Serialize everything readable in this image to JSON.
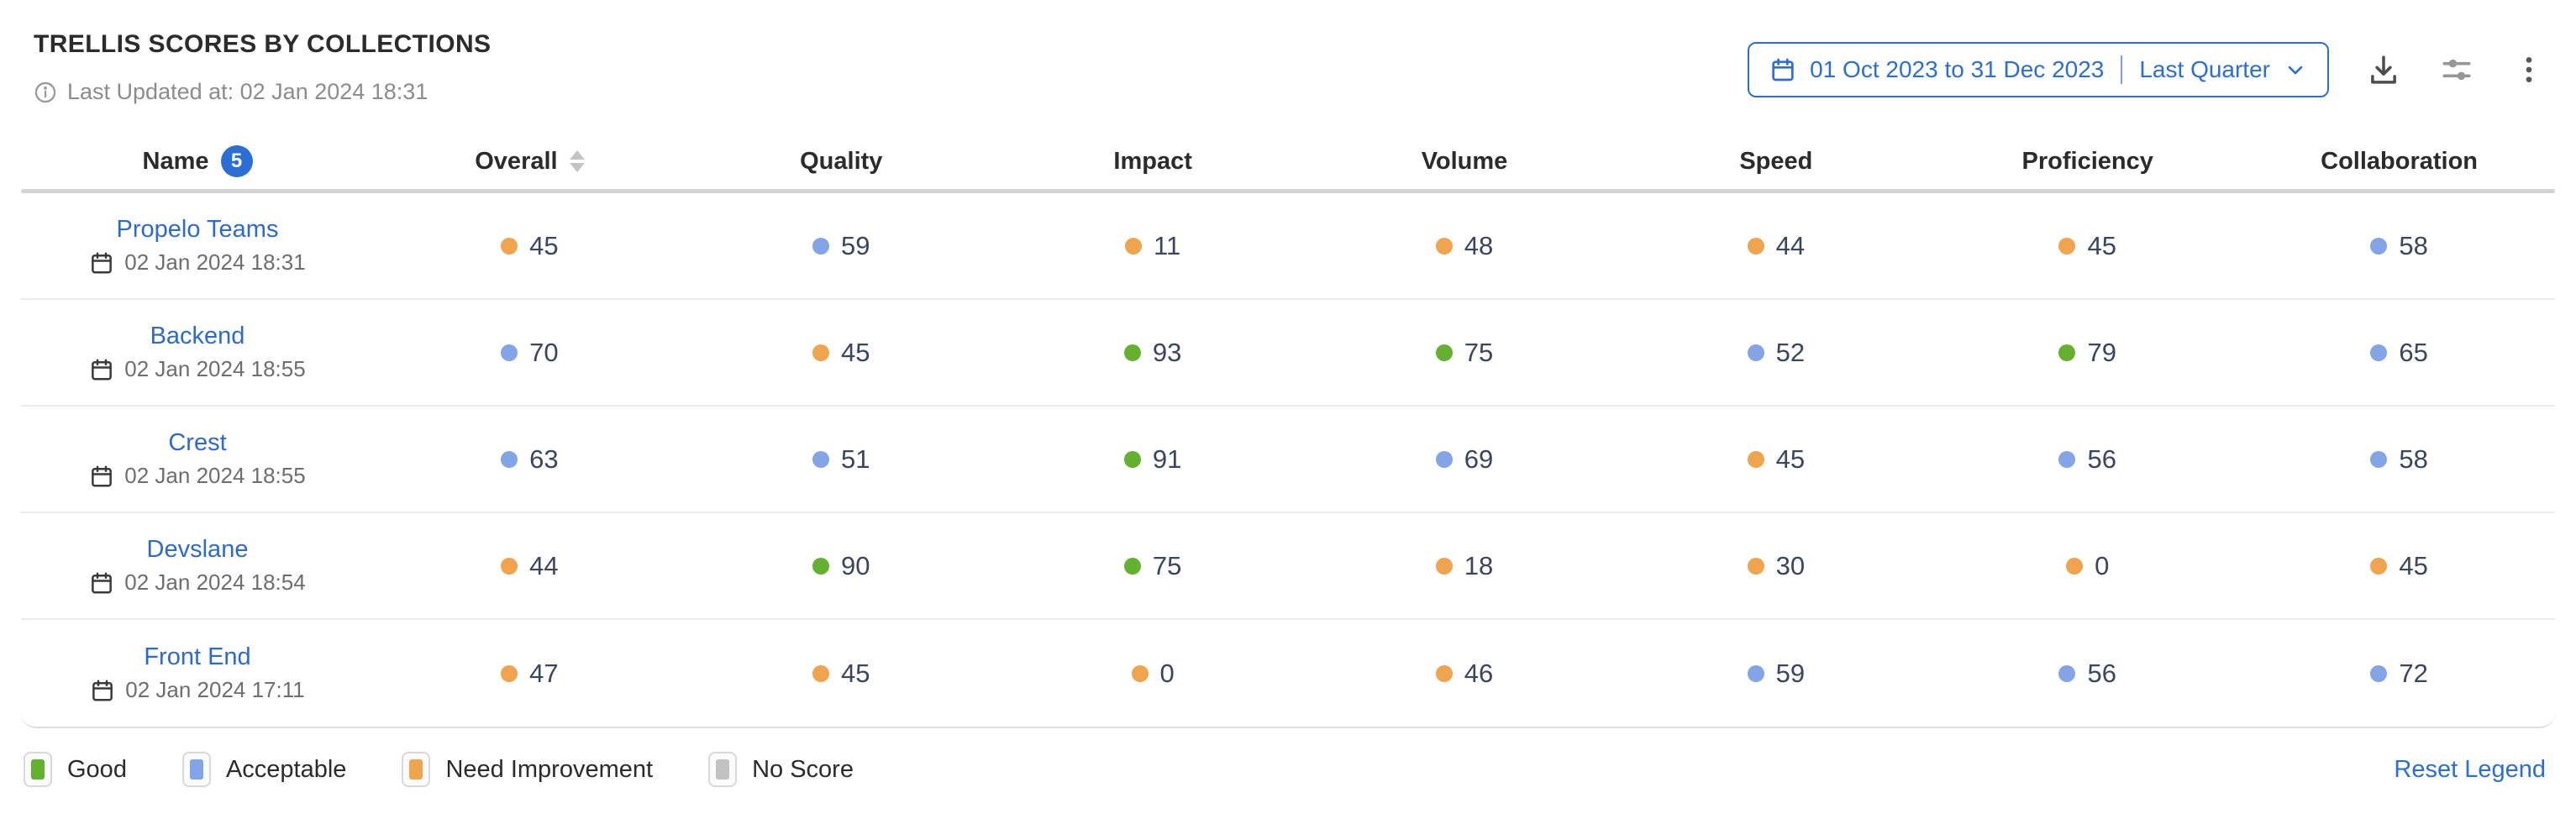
{
  "header": {
    "title": "TRELLIS SCORES BY COLLECTIONS",
    "last_updated": "Last Updated at: 02 Jan 2024 18:31",
    "date_range": {
      "range_text": "01 Oct 2023 to 31 Dec 2023",
      "preset": "Last Quarter"
    }
  },
  "table": {
    "name_header": "Name",
    "row_count_badge": "5",
    "columns": [
      "Overall",
      "Quality",
      "Impact",
      "Volume",
      "Speed",
      "Proficiency",
      "Collaboration"
    ],
    "rows": [
      {
        "name": "Propelo Teams",
        "updated": "02 Jan 2024 18:31",
        "scores": [
          {
            "value": 45,
            "status": "need-improvement"
          },
          {
            "value": 59,
            "status": "acceptable"
          },
          {
            "value": 11,
            "status": "need-improvement"
          },
          {
            "value": 48,
            "status": "need-improvement"
          },
          {
            "value": 44,
            "status": "need-improvement"
          },
          {
            "value": 45,
            "status": "need-improvement"
          },
          {
            "value": 58,
            "status": "acceptable"
          }
        ]
      },
      {
        "name": "Backend",
        "updated": "02 Jan 2024 18:55",
        "scores": [
          {
            "value": 70,
            "status": "acceptable"
          },
          {
            "value": 45,
            "status": "need-improvement"
          },
          {
            "value": 93,
            "status": "good"
          },
          {
            "value": 75,
            "status": "good"
          },
          {
            "value": 52,
            "status": "acceptable"
          },
          {
            "value": 79,
            "status": "good"
          },
          {
            "value": 65,
            "status": "acceptable"
          }
        ]
      },
      {
        "name": "Crest",
        "updated": "02 Jan 2024 18:55",
        "scores": [
          {
            "value": 63,
            "status": "acceptable"
          },
          {
            "value": 51,
            "status": "acceptable"
          },
          {
            "value": 91,
            "status": "good"
          },
          {
            "value": 69,
            "status": "acceptable"
          },
          {
            "value": 45,
            "status": "need-improvement"
          },
          {
            "value": 56,
            "status": "acceptable"
          },
          {
            "value": 58,
            "status": "acceptable"
          }
        ]
      },
      {
        "name": "Devslane",
        "updated": "02 Jan 2024 18:54",
        "scores": [
          {
            "value": 44,
            "status": "need-improvement"
          },
          {
            "value": 90,
            "status": "good"
          },
          {
            "value": 75,
            "status": "good"
          },
          {
            "value": 18,
            "status": "need-improvement"
          },
          {
            "value": 30,
            "status": "need-improvement"
          },
          {
            "value": 0,
            "status": "need-improvement"
          },
          {
            "value": 45,
            "status": "need-improvement"
          }
        ]
      },
      {
        "name": "Front End",
        "updated": "02 Jan 2024 17:11",
        "scores": [
          {
            "value": 47,
            "status": "need-improvement"
          },
          {
            "value": 45,
            "status": "need-improvement"
          },
          {
            "value": 0,
            "status": "need-improvement"
          },
          {
            "value": 46,
            "status": "need-improvement"
          },
          {
            "value": 59,
            "status": "acceptable"
          },
          {
            "value": 56,
            "status": "acceptable"
          },
          {
            "value": 72,
            "status": "acceptable"
          }
        ]
      }
    ]
  },
  "legend": {
    "items": [
      {
        "label": "Good",
        "status": "good"
      },
      {
        "label": "Acceptable",
        "status": "acceptable"
      },
      {
        "label": "Need Improvement",
        "status": "need-improvement"
      },
      {
        "label": "No Score",
        "status": "no-score"
      }
    ],
    "reset_label": "Reset Legend"
  },
  "colors": {
    "good": "#63b12e",
    "acceptable": "#84a4e8",
    "need-improvement": "#f0a44e",
    "no-score": "#c2c2c2",
    "accent_blue": "#2b6fd6"
  }
}
